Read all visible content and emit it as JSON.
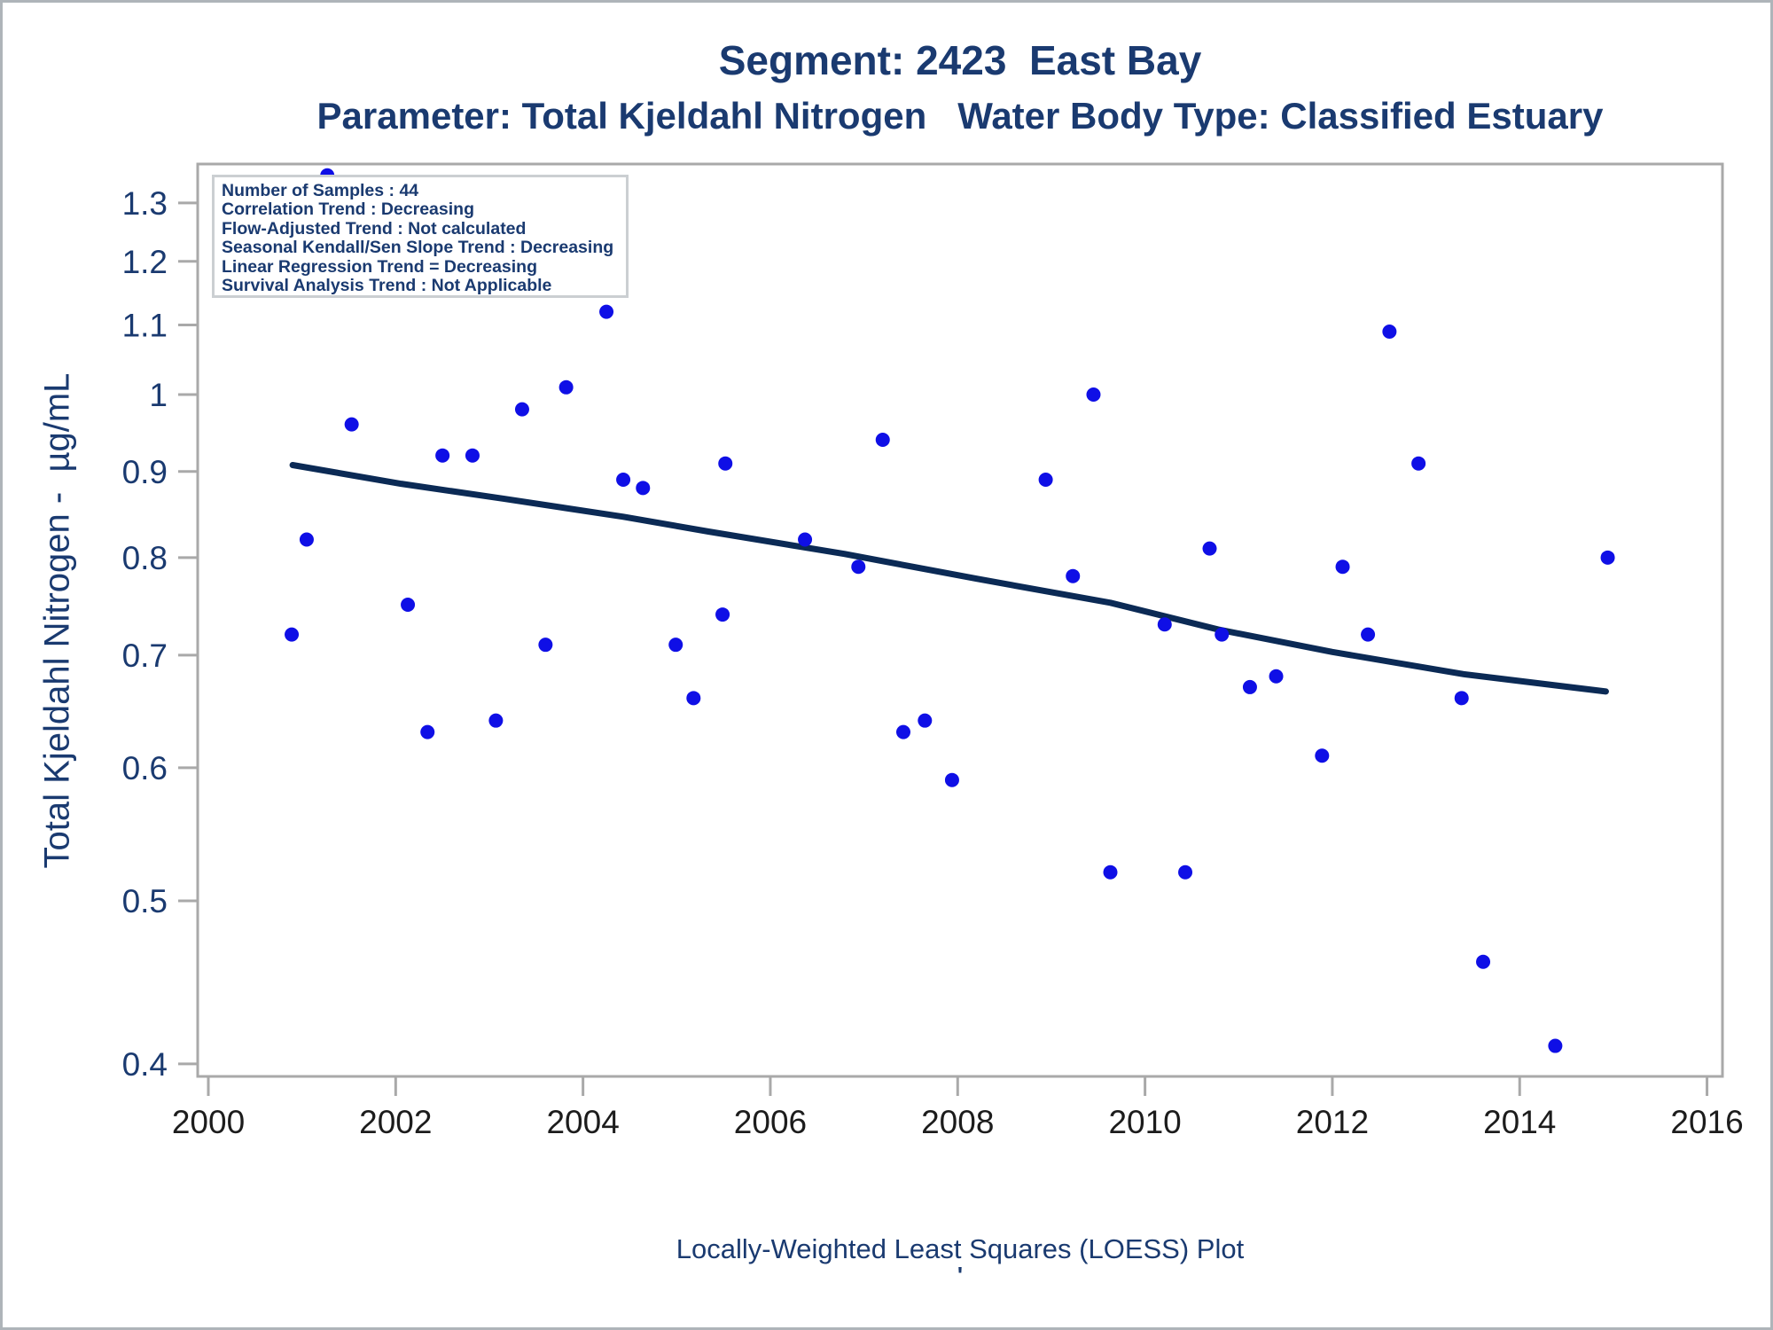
{
  "page": {
    "title_line1": "Segment: 2423  East Bay",
    "title_line2": "Parameter: Total Kjeldahl Nitrogen   Water Body Type: Classified Estuary",
    "footnote": "Locally-Weighted Least Squares (LOESS) Plot",
    "footnote_mark": "'"
  },
  "annotation_box": {
    "lines": [
      "Number of Samples : 44",
      "Correlation Trend : Decreasing",
      "Flow-Adjusted Trend : Not calculated",
      "Seasonal Kendall/Sen Slope Trend : Decreasing",
      "Linear Regression Trend = Decreasing",
      "Survival Analysis Trend : Not Applicable"
    ]
  },
  "chart_data": {
    "type": "scatter",
    "title": "Segment: 2423 East Bay — Total Kjeldahl Nitrogen, Classified Estuary",
    "xlabel": "",
    "ylabel": "Total Kjeldahl Nitrogen -  µg/mL",
    "y_scale": "log",
    "grid": false,
    "legend": "none",
    "xlim": [
      1999.89,
      2016.16
    ],
    "ylim": [
      0.392,
      1.368
    ],
    "x_ticks": [
      2000,
      2002,
      2004,
      2006,
      2008,
      2010,
      2012,
      2014,
      2016
    ],
    "y_ticks": [
      0.4,
      0.5,
      0.6,
      0.7,
      0.8,
      0.9,
      1,
      1.1,
      1.2,
      1.3
    ],
    "points": [
      [
        2001.27,
        1.35
      ],
      [
        2004.25,
        1.12
      ],
      [
        2003.82,
        1.01
      ],
      [
        2003.35,
        0.98
      ],
      [
        2001.53,
        0.96
      ],
      [
        2002.5,
        0.92
      ],
      [
        2002.82,
        0.92
      ],
      [
        2004.43,
        0.89
      ],
      [
        2004.64,
        0.88
      ],
      [
        2001.05,
        0.82
      ],
      [
        2002.13,
        0.75
      ],
      [
        2009.45,
        1.0
      ],
      [
        2007.2,
        0.94
      ],
      [
        2005.52,
        0.91
      ],
      [
        2008.94,
        0.89
      ],
      [
        2006.37,
        0.82
      ],
      [
        2006.94,
        0.79
      ],
      [
        2010.69,
        0.81
      ],
      [
        2009.23,
        0.78
      ],
      [
        2005.49,
        0.74
      ],
      [
        2012.61,
        1.09
      ],
      [
        2012.92,
        0.91
      ],
      [
        2012.11,
        0.79
      ],
      [
        2014.94,
        0.8
      ],
      [
        2000.89,
        0.72
      ],
      [
        2003.6,
        0.71
      ],
      [
        2004.99,
        0.71
      ],
      [
        2005.18,
        0.66
      ],
      [
        2003.07,
        0.64
      ],
      [
        2002.34,
        0.63
      ],
      [
        2010.21,
        0.73
      ],
      [
        2007.65,
        0.64
      ],
      [
        2007.42,
        0.63
      ],
      [
        2007.94,
        0.59
      ],
      [
        2009.63,
        0.52
      ],
      [
        2010.43,
        0.52
      ],
      [
        2010.82,
        0.72
      ],
      [
        2012.38,
        0.72
      ],
      [
        2011.4,
        0.68
      ],
      [
        2011.12,
        0.67
      ],
      [
        2013.38,
        0.66
      ],
      [
        2011.89,
        0.61
      ],
      [
        2013.61,
        0.46
      ],
      [
        2014.38,
        0.41
      ]
    ],
    "loess": [
      [
        2000.9,
        0.908
      ],
      [
        2002.06,
        0.885
      ],
      [
        2003.16,
        0.867
      ],
      [
        2004.43,
        0.846
      ],
      [
        2005.34,
        0.829
      ],
      [
        2006.79,
        0.804
      ],
      [
        2008.21,
        0.777
      ],
      [
        2009.63,
        0.752
      ],
      [
        2010.78,
        0.725
      ],
      [
        2012.0,
        0.703
      ],
      [
        2013.4,
        0.682
      ],
      [
        2014.92,
        0.666
      ]
    ],
    "colors": {
      "marker": "#0f0fe6",
      "loess_line": "#0b2a55",
      "frame": "#a9a9a9",
      "heading_text": "#1a3a70",
      "y_tick_text": "#1a3a70",
      "x_tick_text": "#1c1c1c"
    }
  }
}
